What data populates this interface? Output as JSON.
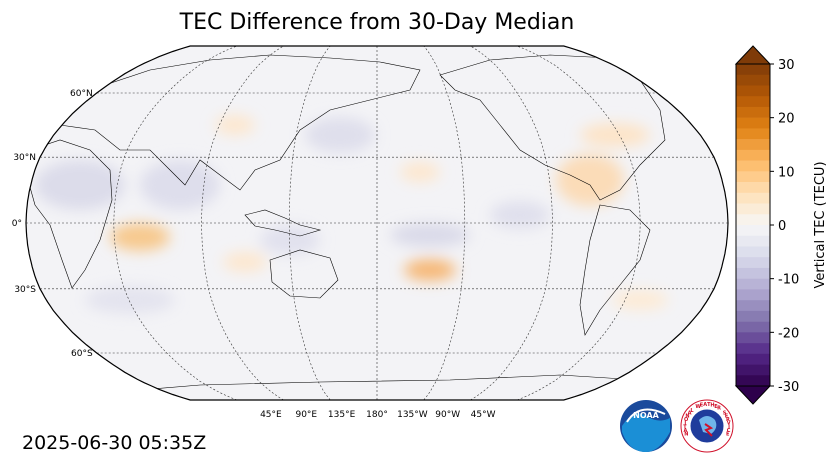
{
  "title": "TEC Difference from 30-Day Median",
  "timestamp": "2025-06-30 05:35Z",
  "map": {
    "projection": "Robinson",
    "central_longitude": 180,
    "lat_labels": [
      "60°N",
      "30°N",
      "0°",
      "30°S",
      "60°S"
    ],
    "lon_labels": [
      "45°E",
      "90°E",
      "135°E",
      "180°",
      "135°W",
      "90°W",
      "45°W"
    ],
    "background_color": "#f3f3f6",
    "anomalies": [
      {
        "region": "Atlantic west of Africa",
        "sign": "positive",
        "magnitude": 4
      },
      {
        "region": "South Pacific",
        "sign": "positive",
        "magnitude": 5
      },
      {
        "region": "Central America / Caribbean",
        "sign": "positive",
        "magnitude": 3
      },
      {
        "region": "North Atlantic",
        "sign": "positive",
        "magnitude": 2
      },
      {
        "region": "Africa",
        "sign": "negative",
        "magnitude": -2
      },
      {
        "region": "Indian Ocean",
        "sign": "negative",
        "magnitude": -2
      },
      {
        "region": "Equatorial Pacific",
        "sign": "negative",
        "magnitude": -2
      }
    ]
  },
  "colorbar": {
    "label": "Vertical TEC (TECU)",
    "ticks": [
      "30",
      "20",
      "10",
      "0",
      "-10",
      "-20",
      "-30"
    ],
    "min": -30,
    "max": 30,
    "colormap": "PuOr_r",
    "extend": "both"
  },
  "logos": {
    "noaa_text": "NOAA",
    "nws_text": "NATIONAL WEATHER SERVICE"
  }
}
